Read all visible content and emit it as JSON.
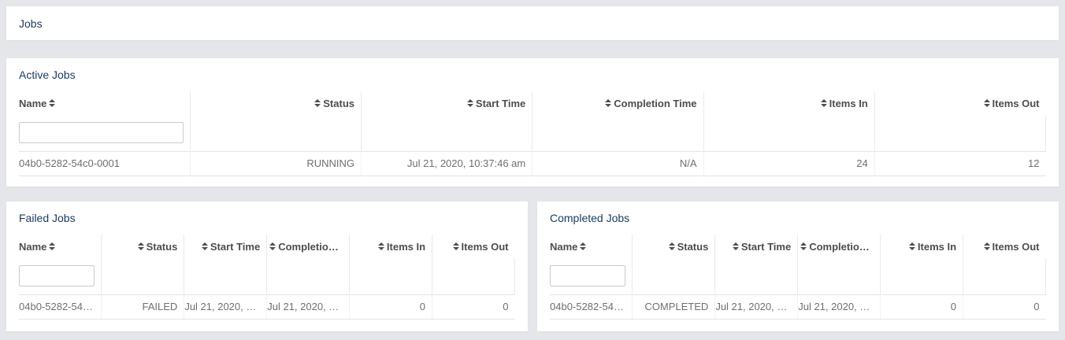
{
  "topbar": {
    "title": "Jobs"
  },
  "colors": {
    "page_background": "#e4e6e9",
    "panel_background": "#ffffff",
    "title_text": "#1b3d61",
    "header_text": "#4c4d50",
    "cell_text": "#6e6f72"
  },
  "icons": {
    "sort": "sort-arrows"
  },
  "panels": {
    "active": {
      "title": "Active Jobs",
      "columns": [
        "Name",
        "Status",
        "Start Time",
        "Completion Time",
        "Items In",
        "Items Out"
      ],
      "name_filter_value": "",
      "row": {
        "name": "04b0-5282-54c0-0001",
        "status": "RUNNING",
        "start_time": "Jul 21, 2020, 10:37:46 am",
        "completion_time": "N/A",
        "items_in": "24",
        "items_out": "12"
      }
    },
    "failed": {
      "title": "Failed Jobs",
      "columns": [
        "Name",
        "Status",
        "Start Time",
        "Completion …",
        "Items In",
        "Items Out"
      ],
      "name_filter_value": "",
      "row": {
        "name": "04b0-5282-54…",
        "status": "FAILED",
        "start_time": "Jul 21, 2020, 1…",
        "completion_time": "Jul 21, 2020, 1…",
        "items_in": "0",
        "items_out": "0"
      }
    },
    "completed": {
      "title": "Completed Jobs",
      "columns": [
        "Name",
        "Status",
        "Start Time",
        "Completion …",
        "Items In",
        "Items Out"
      ],
      "name_filter_value": "",
      "row": {
        "name": "04b0-5282-54…",
        "status": "COMPLETED",
        "start_time": "Jul 21, 2020, 1…",
        "completion_time": "Jul 21, 2020, 1…",
        "items_in": "0",
        "items_out": "0"
      }
    }
  }
}
